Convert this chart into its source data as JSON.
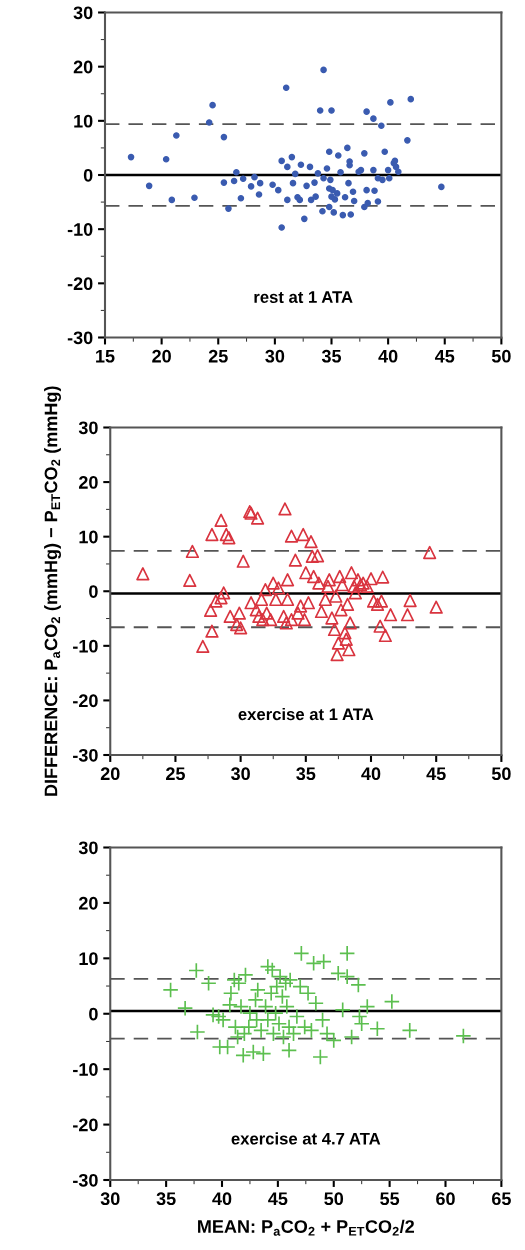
{
  "chart_data": [
    {
      "type": "scatter",
      "annotations": [
        {
          "text": "rest at 1 ATA"
        }
      ],
      "xlim": [
        15,
        50
      ],
      "ylim": [
        -30,
        30
      ],
      "xticks": [
        15,
        20,
        25,
        30,
        35,
        40,
        45,
        50
      ],
      "yticks": [
        -30,
        -20,
        -10,
        0,
        10,
        20,
        30
      ],
      "marker": "circle",
      "grid": false,
      "legend": false,
      "ref_lines": [
        {
          "axis": "y",
          "value": 0,
          "color": "#000000",
          "line_style": "solid"
        },
        {
          "axis": "y",
          "value": 9.4,
          "color": "#555555",
          "line_style": "dashed"
        },
        {
          "axis": "y",
          "value": -5.7,
          "color": "#555555",
          "line_style": "dashed"
        }
      ],
      "series": [
        {
          "color": "#3a5bb0",
          "x": [
            17.3,
            18.9,
            20.4,
            20.9,
            21.3,
            22.9,
            24.2,
            24.5,
            25.5,
            25.5,
            25.9,
            26.4,
            26.6,
            27.0,
            27.2,
            27.9,
            28.2,
            28.6,
            28.7,
            29.8,
            30.3,
            30.6,
            30.6,
            31.0,
            31.1,
            31.1,
            31.5,
            31.6,
            31.8,
            32.0,
            32.2,
            32.3,
            32.6,
            32.8,
            33.1,
            33.2,
            33.5,
            33.6,
            33.8,
            34.0,
            34.2,
            34.3,
            34.3,
            34.6,
            34.8,
            34.8,
            34.8,
            34.9,
            35.0,
            35.0,
            35.1,
            35.2,
            35.3,
            35.5,
            35.6,
            35.8,
            36.0,
            36.2,
            36.4,
            36.5,
            36.6,
            36.6,
            36.7,
            36.9,
            37.0,
            37.4,
            37.6,
            37.9,
            37.9,
            38.1,
            38.1,
            38.2,
            38.7,
            38.7,
            38.8,
            39.1,
            39.1,
            39.4,
            39.5,
            39.7,
            40.0,
            40.1,
            40.2,
            40.5,
            40.6,
            40.7,
            40.9,
            41.7,
            42.0,
            44.7
          ],
          "values": [
            3.3,
            -2.0,
            2.9,
            -4.6,
            7.3,
            -4.2,
            9.7,
            12.9,
            7.0,
            -1.4,
            -6.2,
            -1.1,
            0.5,
            -4.3,
            -0.7,
            -2.1,
            -0.4,
            -3.6,
            -1.5,
            -1.8,
            -2.8,
            2.6,
            -9.7,
            16.1,
            1.5,
            -4.6,
            3.3,
            -1.5,
            0.2,
            -4.1,
            -4.6,
            1.9,
            -8.1,
            -2.0,
            1.5,
            -4.6,
            -1.4,
            -4.0,
            0.3,
            11.9,
            -6.7,
            19.4,
            -0.6,
            1.2,
            4.3,
            -2.5,
            -5.9,
            -0.9,
            11.9,
            -4.0,
            -2.8,
            -6.9,
            -4.5,
            -3.4,
            3.6,
            0.5,
            -7.4,
            -4.1,
            5.0,
            -1.5,
            2.5,
            1.8,
            -7.3,
            -3.1,
            -4.8,
            0.6,
            0.9,
            4.0,
            -5.9,
            11.7,
            -2.8,
            -5.2,
            10.4,
            0.9,
            -2.9,
            -4.9,
            -0.6,
            9.1,
            -0.9,
            4.3,
            0.9,
            -0.6,
            13.4,
            2.2,
            2.6,
            1.5,
            0.6,
            6.4,
            14.0,
            -2.2
          ]
        }
      ]
    },
    {
      "type": "scatter",
      "ylabel": "DIFFERENCE: P$_{a}$CO$_{2}$ (mmHg) − P$_{ET}$CO$_{2}$ (mmHg)",
      "annotations": [
        {
          "text": "exercise at 1 ATA"
        }
      ],
      "xlim": [
        20,
        50
      ],
      "ylim": [
        -30,
        30
      ],
      "xticks": [
        20,
        25,
        30,
        35,
        40,
        45,
        50
      ],
      "yticks": [
        -30,
        -20,
        -10,
        0,
        10,
        20,
        30
      ],
      "marker": "triangle",
      "grid": false,
      "legend": false,
      "ref_lines": [
        {
          "axis": "y",
          "value": -0.4,
          "color": "#000000",
          "line_style": "solid"
        },
        {
          "axis": "y",
          "value": 7.4,
          "color": "#555555",
          "line_style": "dashed"
        },
        {
          "axis": "y",
          "value": -6.6,
          "color": "#555555",
          "line_style": "dashed"
        }
      ],
      "series": [
        {
          "color": "#d9343f",
          "x": [
            22.5,
            26.1,
            26.3,
            27.1,
            27.7,
            27.8,
            27.8,
            28.1,
            28.5,
            28.5,
            28.7,
            28.9,
            29.1,
            29.2,
            29.7,
            30.0,
            30.2,
            29.9,
            30.7,
            30.8,
            30.8,
            31.2,
            31.3,
            31.4,
            31.6,
            31.7,
            31.9,
            32.0,
            32.3,
            32.5,
            32.7,
            32.9,
            33.4,
            33.3,
            33.6,
            33.5,
            33.6,
            33.9,
            33.9,
            34.2,
            34.4,
            34.6,
            34.8,
            34.9,
            35.0,
            35.2,
            35.4,
            35.5,
            35.6,
            35.9,
            36.0,
            36.2,
            36.5,
            36.7,
            36.8,
            37.0,
            37.2,
            37.3,
            37.4,
            37.5,
            37.6,
            37.7,
            37.8,
            38.0,
            38.1,
            38.2,
            38.3,
            38.4,
            38.5,
            38.7,
            38.8,
            39.0,
            39.2,
            39.4,
            39.7,
            40.0,
            40.2,
            40.5,
            40.7,
            40.8,
            40.9,
            41.1,
            41.5,
            42.8,
            43.0,
            44.5,
            45.0
          ],
          "values": [
            3.2,
            2.0,
            7.3,
            -10.1,
            -3.5,
            -7.3,
            10.4,
            -1.8,
            13.0,
            -1.2,
            -0.3,
            10.4,
            9.8,
            -4.6,
            -6.1,
            -6.7,
            5.5,
            -4.0,
            14.6,
            14.3,
            -2.1,
            -3.4,
            13.4,
            -4.6,
            -1.5,
            -5.2,
            0.3,
            -4.0,
            -5.2,
            1.5,
            -1.5,
            0.6,
            15.1,
            -4.6,
            2.1,
            -5.8,
            -1.5,
            10.1,
            -5.2,
            5.7,
            -4.0,
            -2.7,
            10.4,
            -5.2,
            3.4,
            -2.1,
            9.1,
            6.4,
            2.7,
            6.5,
            1.5,
            -3.7,
            -1.5,
            0.9,
            2.1,
            -4.9,
            -7.0,
            -0.9,
            -11.6,
            -9.5,
            2.7,
            -3.4,
            1.2,
            -7.6,
            -8.8,
            -2.4,
            -10.7,
            -5.8,
            3.4,
            0.9,
            -0.3,
            2.1,
            1.2,
            1.5,
            0.9,
            2.3,
            -1.8,
            -2.4,
            -6.4,
            -1.8,
            2.6,
            -8.1,
            -4.3,
            -4.3,
            -1.7,
            7.1,
            -2.9
          ]
        }
      ]
    },
    {
      "type": "scatter",
      "xlabel": "MEAN: P$_{a}$CO$_{2}$ + P$_{ET}$CO$_{2}$/2",
      "annotations": [
        {
          "text": "exercise at 4.7 ATA"
        }
      ],
      "xlim": [
        30,
        65
      ],
      "ylim": [
        -30,
        30
      ],
      "xticks": [
        30,
        35,
        40,
        45,
        50,
        55,
        60,
        65
      ],
      "yticks": [
        -30,
        -20,
        -10,
        0,
        10,
        20,
        30
      ],
      "marker": "cross",
      "grid": false,
      "legend": false,
      "ref_lines": [
        {
          "axis": "y",
          "value": 0.5,
          "color": "#000000",
          "line_style": "solid"
        },
        {
          "axis": "y",
          "value": 6.3,
          "color": "#555555",
          "line_style": "dashed"
        },
        {
          "axis": "y",
          "value": -4.5,
          "color": "#555555",
          "line_style": "dashed"
        }
      ],
      "series": [
        {
          "color": "#5cbf4f",
          "x": [
            35.4,
            36.7,
            37.7,
            37.8,
            38.8,
            39.2,
            39.7,
            39.8,
            40.1,
            40.5,
            40.7,
            40.8,
            41.1,
            41.2,
            41.4,
            41.5,
            41.7,
            41.9,
            42.0,
            42.1,
            42.4,
            42.5,
            42.8,
            43.0,
            43.1,
            43.2,
            43.5,
            43.7,
            43.9,
            44.1,
            44.1,
            44.4,
            44.5,
            44.6,
            44.8,
            44.9,
            45.1,
            45.2,
            45.4,
            45.5,
            45.7,
            45.8,
            46.0,
            46.0,
            46.1,
            46.4,
            46.7,
            47.0,
            47.1,
            47.4,
            47.7,
            48.0,
            48.2,
            48.4,
            48.8,
            49.0,
            49.1,
            49.4,
            50.0,
            50.4,
            50.8,
            51.2,
            51.2,
            51.6,
            52.2,
            52.3,
            52.5,
            53.0,
            53.9,
            55.2,
            56.8,
            61.6
          ],
          "values": [
            4.3,
            1.0,
            7.8,
            -3.3,
            5.5,
            -0.2,
            -0.5,
            -6.0,
            -1.1,
            -6.0,
            1.6,
            3.7,
            6.1,
            -2.4,
            -4.2,
            5.5,
            1.3,
            -7.5,
            -3.6,
            7.0,
            -2.4,
            0.1,
            -6.9,
            2.5,
            -1.1,
            4.3,
            -3.0,
            -7.2,
            1.3,
            8.5,
            -1.1,
            3.7,
            7.9,
            -3.6,
            0.1,
            4.9,
            -1.8,
            6.7,
            3.1,
            -4.2,
            5.5,
            1.3,
            -2.4,
            -6.6,
            6.1,
            -3.6,
            -0.5,
            4.9,
            10.9,
            -2.4,
            3.7,
            -3.0,
            9.1,
            1.9,
            -7.8,
            -1.1,
            9.4,
            -3.6,
            -4.8,
            7.3,
            0.7,
            10.9,
            6.7,
            -4.2,
            5.2,
            -0.5,
            -1.8,
            1.3,
            -2.7,
            2.2,
            -3.0,
            -4.0
          ]
        }
      ]
    }
  ]
}
